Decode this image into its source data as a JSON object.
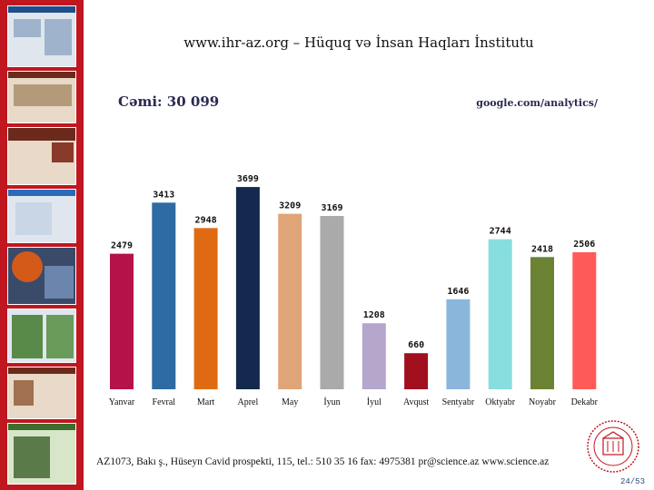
{
  "header": {
    "title": "www.ihr-az.org – Hüquq və İnsan Haqları İnstitutu",
    "total": "Cəmi: 30 099",
    "source": "google.com/analytics/"
  },
  "chart_data": {
    "type": "bar",
    "categories": [
      "Yanvar",
      "Fevral",
      "Mart",
      "Aprel",
      "May",
      "İyun",
      "İyul",
      "Avqust",
      "Sentyabr",
      "Oktyabr",
      "Noyabr",
      "Dekabr"
    ],
    "values": [
      2479,
      3413,
      2948,
      3699,
      3209,
      3169,
      1208,
      660,
      1646,
      2744,
      2418,
      2506
    ],
    "colors": [
      "#b5124a",
      "#2e6aa3",
      "#e06a12",
      "#14294d",
      "#e0a479",
      "#a9aaa9",
      "#b5a6cc",
      "#a10f1e",
      "#8ab6dc",
      "#88dede",
      "#6b8235",
      "#ff5a5a"
    ],
    "title": "",
    "xlabel": "",
    "ylabel": "",
    "ylim": [
      0,
      3800
    ]
  },
  "footer": {
    "address": "AZ1073, Bakı ş., Hüseyn Cavid prospekti, 115, tel.: 510 35 16 fax: 4975381 pr@science.az www.science.az",
    "page": "24/53"
  }
}
